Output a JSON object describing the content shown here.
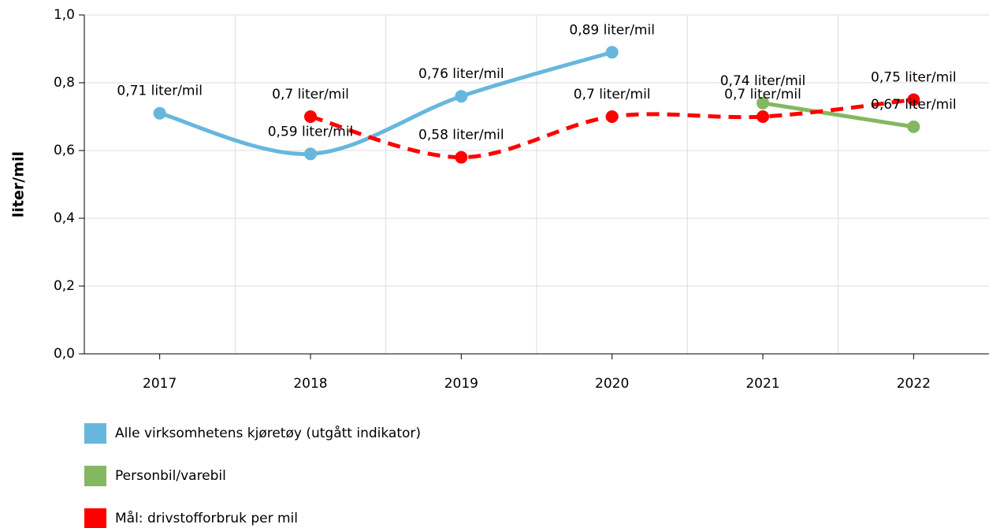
{
  "chart_data": {
    "type": "line",
    "y_label": "liter/mil",
    "categories": [
      "2017",
      "2018",
      "2019",
      "2020",
      "2021",
      "2022"
    ],
    "series": [
      {
        "name": "Alle virksomhetens kjøretøy (utgått indikator)",
        "color": "#67b7dc",
        "dashed": false,
        "values": [
          0.71,
          0.59,
          0.76,
          0.89,
          null,
          null
        ],
        "value_labels": [
          "0,71 liter/mil",
          "0,59 liter/mil",
          "0,76 liter/mil",
          "0,89 liter/mil",
          null,
          null
        ]
      },
      {
        "name": "Personbil/varebil",
        "color": "#84b761",
        "dashed": false,
        "values": [
          null,
          null,
          null,
          null,
          0.74,
          0.67
        ],
        "value_labels": [
          null,
          null,
          null,
          null,
          "0,74 liter/mil",
          "0,67 liter/mil"
        ]
      },
      {
        "name": "Mål: drivstofforbruk per mil",
        "color": "#ff0000",
        "dashed": true,
        "values": [
          null,
          0.7,
          0.58,
          0.7,
          0.7,
          0.75
        ],
        "value_labels": [
          null,
          "0,7 liter/mil",
          "0,58 liter/mil",
          "0,7 liter/mil",
          "0,7 liter/mil",
          "0,75 liter/mil"
        ]
      }
    ],
    "ylim": [
      0,
      1
    ],
    "yticks": [
      {
        "value": 0,
        "label": "0,0"
      },
      {
        "value": 0.2,
        "label": "0,2"
      },
      {
        "value": 0.4,
        "label": "0,4"
      },
      {
        "value": 0.6,
        "label": "0,6"
      },
      {
        "value": 0.8,
        "label": "0,8"
      },
      {
        "value": 1,
        "label": "1,0"
      }
    ],
    "grid": true,
    "legend": "bottom-left"
  }
}
